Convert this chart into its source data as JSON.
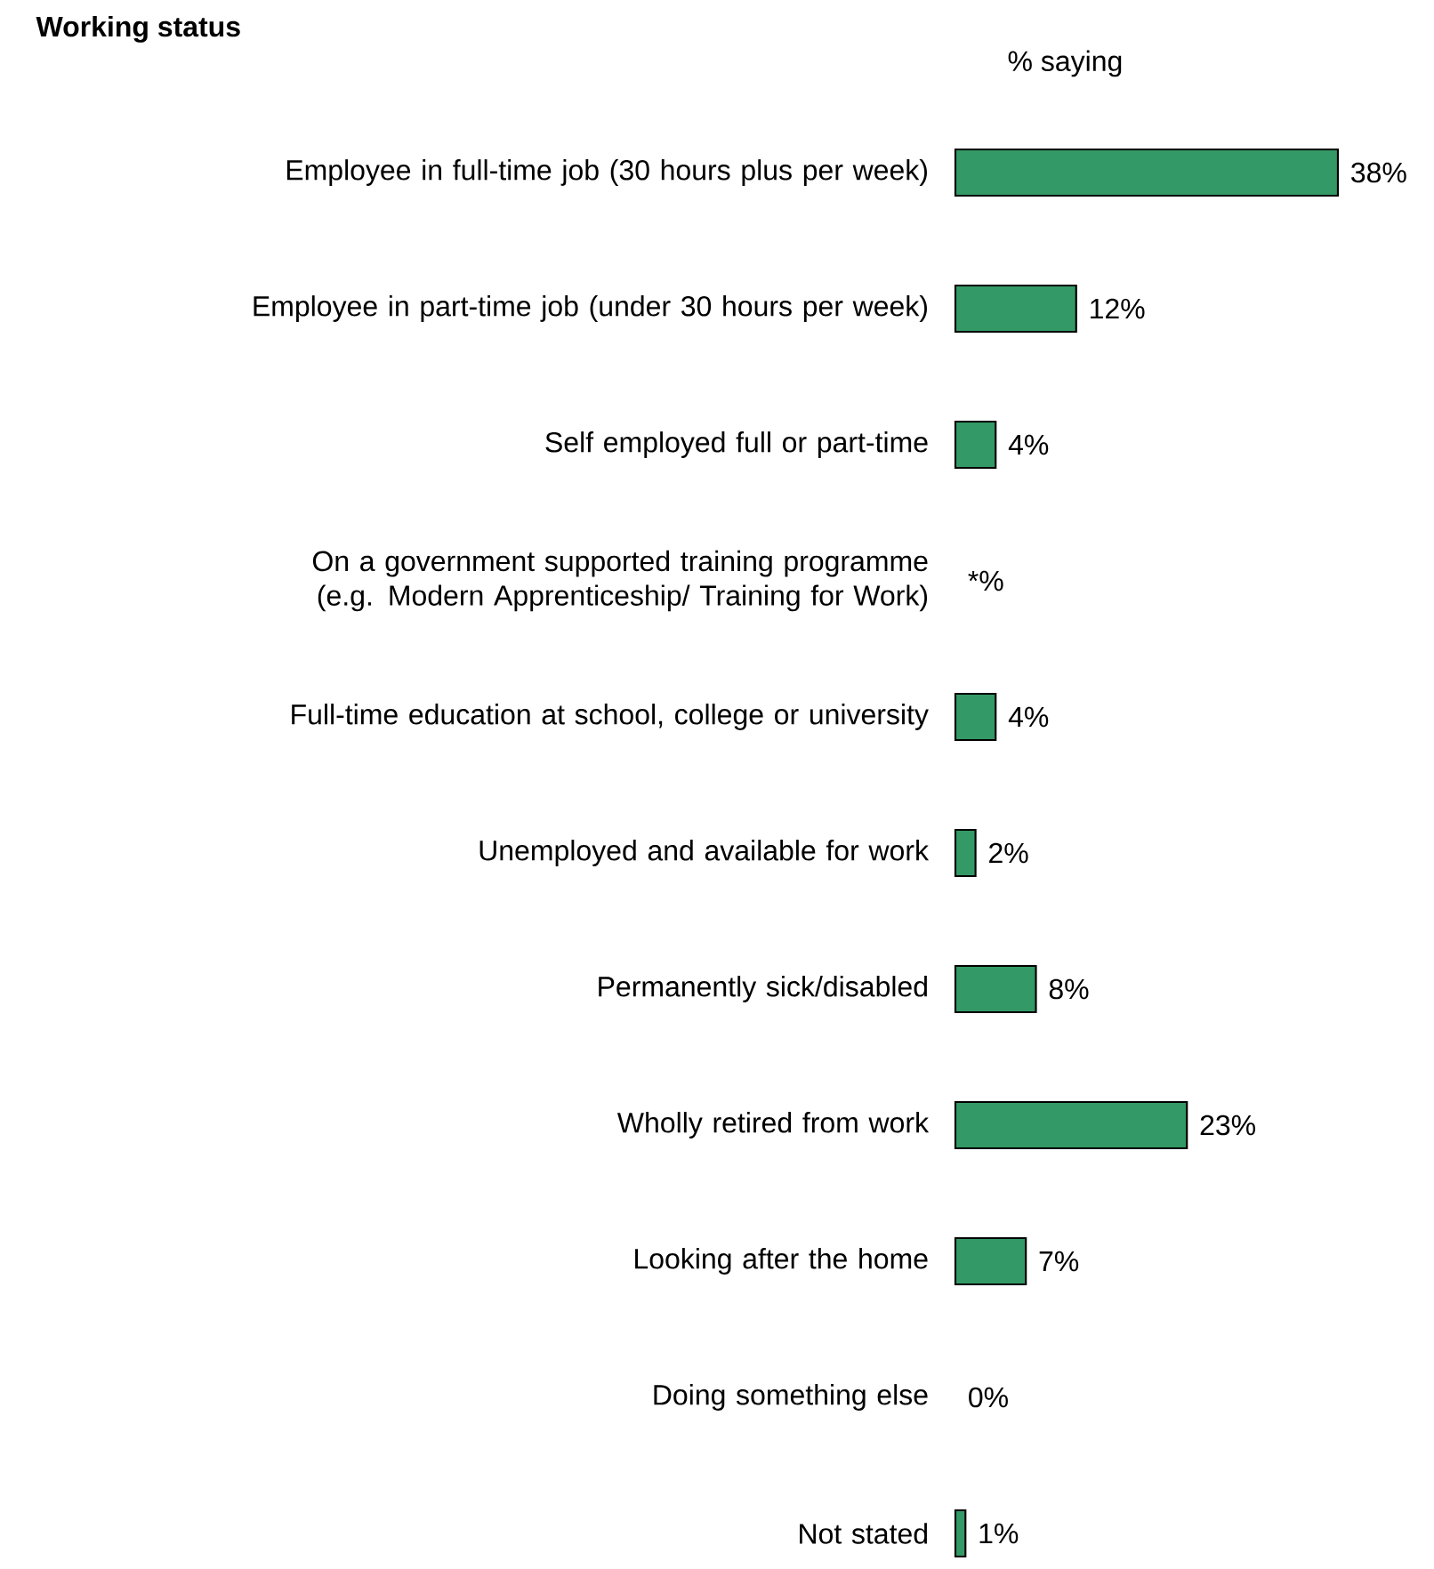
{
  "chart_data": {
    "type": "bar",
    "orientation": "horizontal",
    "title": "Working status",
    "annotations": [
      "% saying"
    ],
    "categories": [
      "Employee in full-time job (30 hours plus per week)",
      "Employee in part-time job (under 30 hours per week)",
      "Self employed full or part-time",
      "On a government supported training programme (e.g. Modern Apprenticeship/ Training for Work)",
      "Full-time education at school, college or university",
      "Unemployed and available for work",
      "Permanently sick/disabled",
      "Wholly retired from work",
      "Looking after the home",
      "Doing something else",
      "Not stated"
    ],
    "values": [
      38,
      12,
      4,
      null,
      4,
      2,
      8,
      23,
      7,
      0,
      1
    ],
    "value_labels": [
      "38%",
      "12%",
      "4%",
      "*%",
      "4%",
      "2%",
      "8%",
      "23%",
      "7%",
      "0%",
      "1%"
    ],
    "color": "#339966"
  }
}
